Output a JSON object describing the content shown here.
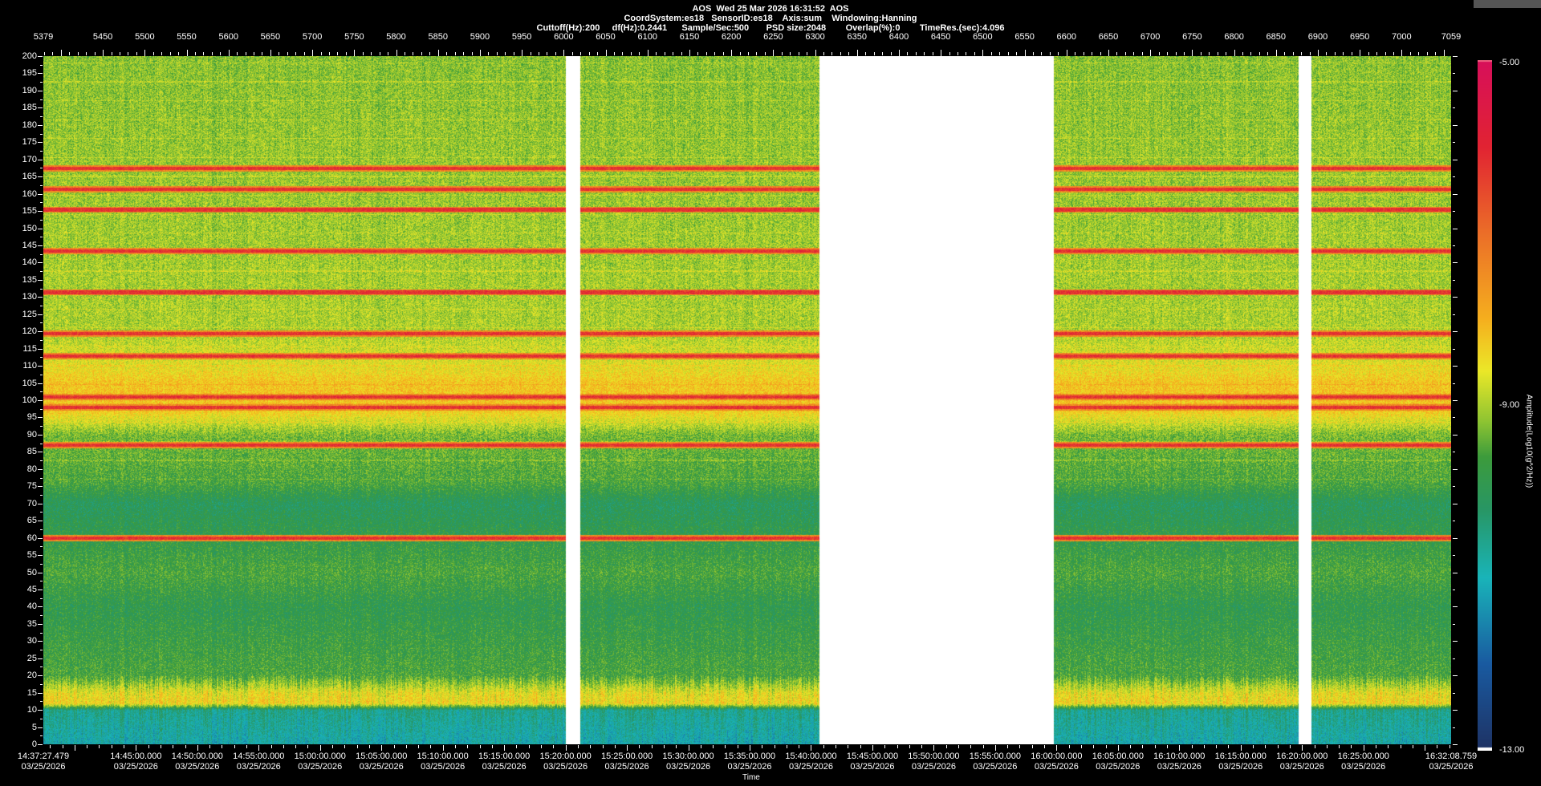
{
  "header": {
    "line1": "AOS  Wed 25 Mar 2026 16:31:52  AOS",
    "line2": "CoordSystem:es18   SensorID:es18    Axis:sum    Windowing:Hanning",
    "line3": "Cuttoff(Hz):200     df(Hz):0.2441      Sample/Sec:500       PSD size:2048        Overlap(%):0        TimeRes.(sec):4.096"
  },
  "chart_data": {
    "type": "heatmap",
    "top_axis": {
      "range": [
        5379,
        7059
      ],
      "ticks": [
        5379,
        5450,
        5500,
        5550,
        5600,
        5650,
        5700,
        5750,
        5800,
        5850,
        5900,
        5950,
        6000,
        6050,
        6100,
        6150,
        6200,
        6250,
        6300,
        6350,
        6400,
        6450,
        6500,
        6550,
        6600,
        6650,
        6700,
        6750,
        6800,
        6850,
        6900,
        6950,
        7000,
        7059
      ]
    },
    "y_axis": {
      "range": [
        0,
        200
      ],
      "ticks": [
        0,
        5,
        10,
        15,
        20,
        25,
        30,
        35,
        40,
        45,
        50,
        55,
        60,
        65,
        70,
        75,
        80,
        85,
        90,
        95,
        100,
        105,
        110,
        115,
        120,
        125,
        130,
        135,
        140,
        145,
        150,
        155,
        160,
        165,
        170,
        175,
        180,
        185,
        190,
        195,
        200
      ]
    },
    "x_axis": {
      "label": "Time",
      "start": "14:37:27.479",
      "end": "16:32:08.759",
      "start_date": "03/25/2026",
      "end_date": "03/25/2026",
      "ticks": [
        "14:45:00.000",
        "14:50:00.000",
        "14:55:00.000",
        "15:00:00.000",
        "15:05:00.000",
        "15:10:00.000",
        "15:15:00.000",
        "15:20:00.000",
        "15:25:00.000",
        "15:30:00.000",
        "15:35:00.000",
        "15:40:00.000",
        "15:45:00.000",
        "15:50:00.000",
        "15:55:00.000",
        "16:00:00.000",
        "16:05:00.000",
        "16:10:00.000",
        "16:15:00.000",
        "16:20:00.000",
        "16:25:00.000"
      ],
      "tick_date": "03/25/2026"
    },
    "gaps": [
      [
        "15:20:00",
        "15:21:10"
      ],
      [
        "15:40:40",
        "15:59:45"
      ],
      [
        "16:19:40",
        "16:20:45"
      ]
    ],
    "colorbar": {
      "title": "Amplitude(Log10(g^2/Hz))",
      "min": -13.0,
      "max": -5.0,
      "labels": [
        "-5.00",
        "-9.00",
        "-13.00"
      ]
    },
    "spectral_lines_hz": [
      167.5,
      161.5,
      155.5,
      143.5,
      131.5,
      119.5,
      113,
      101,
      98,
      87,
      60
    ],
    "level_profile": [
      [
        0,
        -11
      ],
      [
        10,
        -10.6
      ],
      [
        12,
        -8.4
      ],
      [
        15,
        -8.6
      ],
      [
        20,
        -9.6
      ],
      [
        40,
        -9.9
      ],
      [
        50,
        -9.6
      ],
      [
        70,
        -10.1
      ],
      [
        76,
        -9.6
      ],
      [
        90,
        -9.3
      ],
      [
        97,
        -8.3
      ],
      [
        105,
        -8.2
      ],
      [
        110,
        -8.6
      ],
      [
        120,
        -9.0
      ],
      [
        200,
        -9.2
      ]
    ]
  }
}
